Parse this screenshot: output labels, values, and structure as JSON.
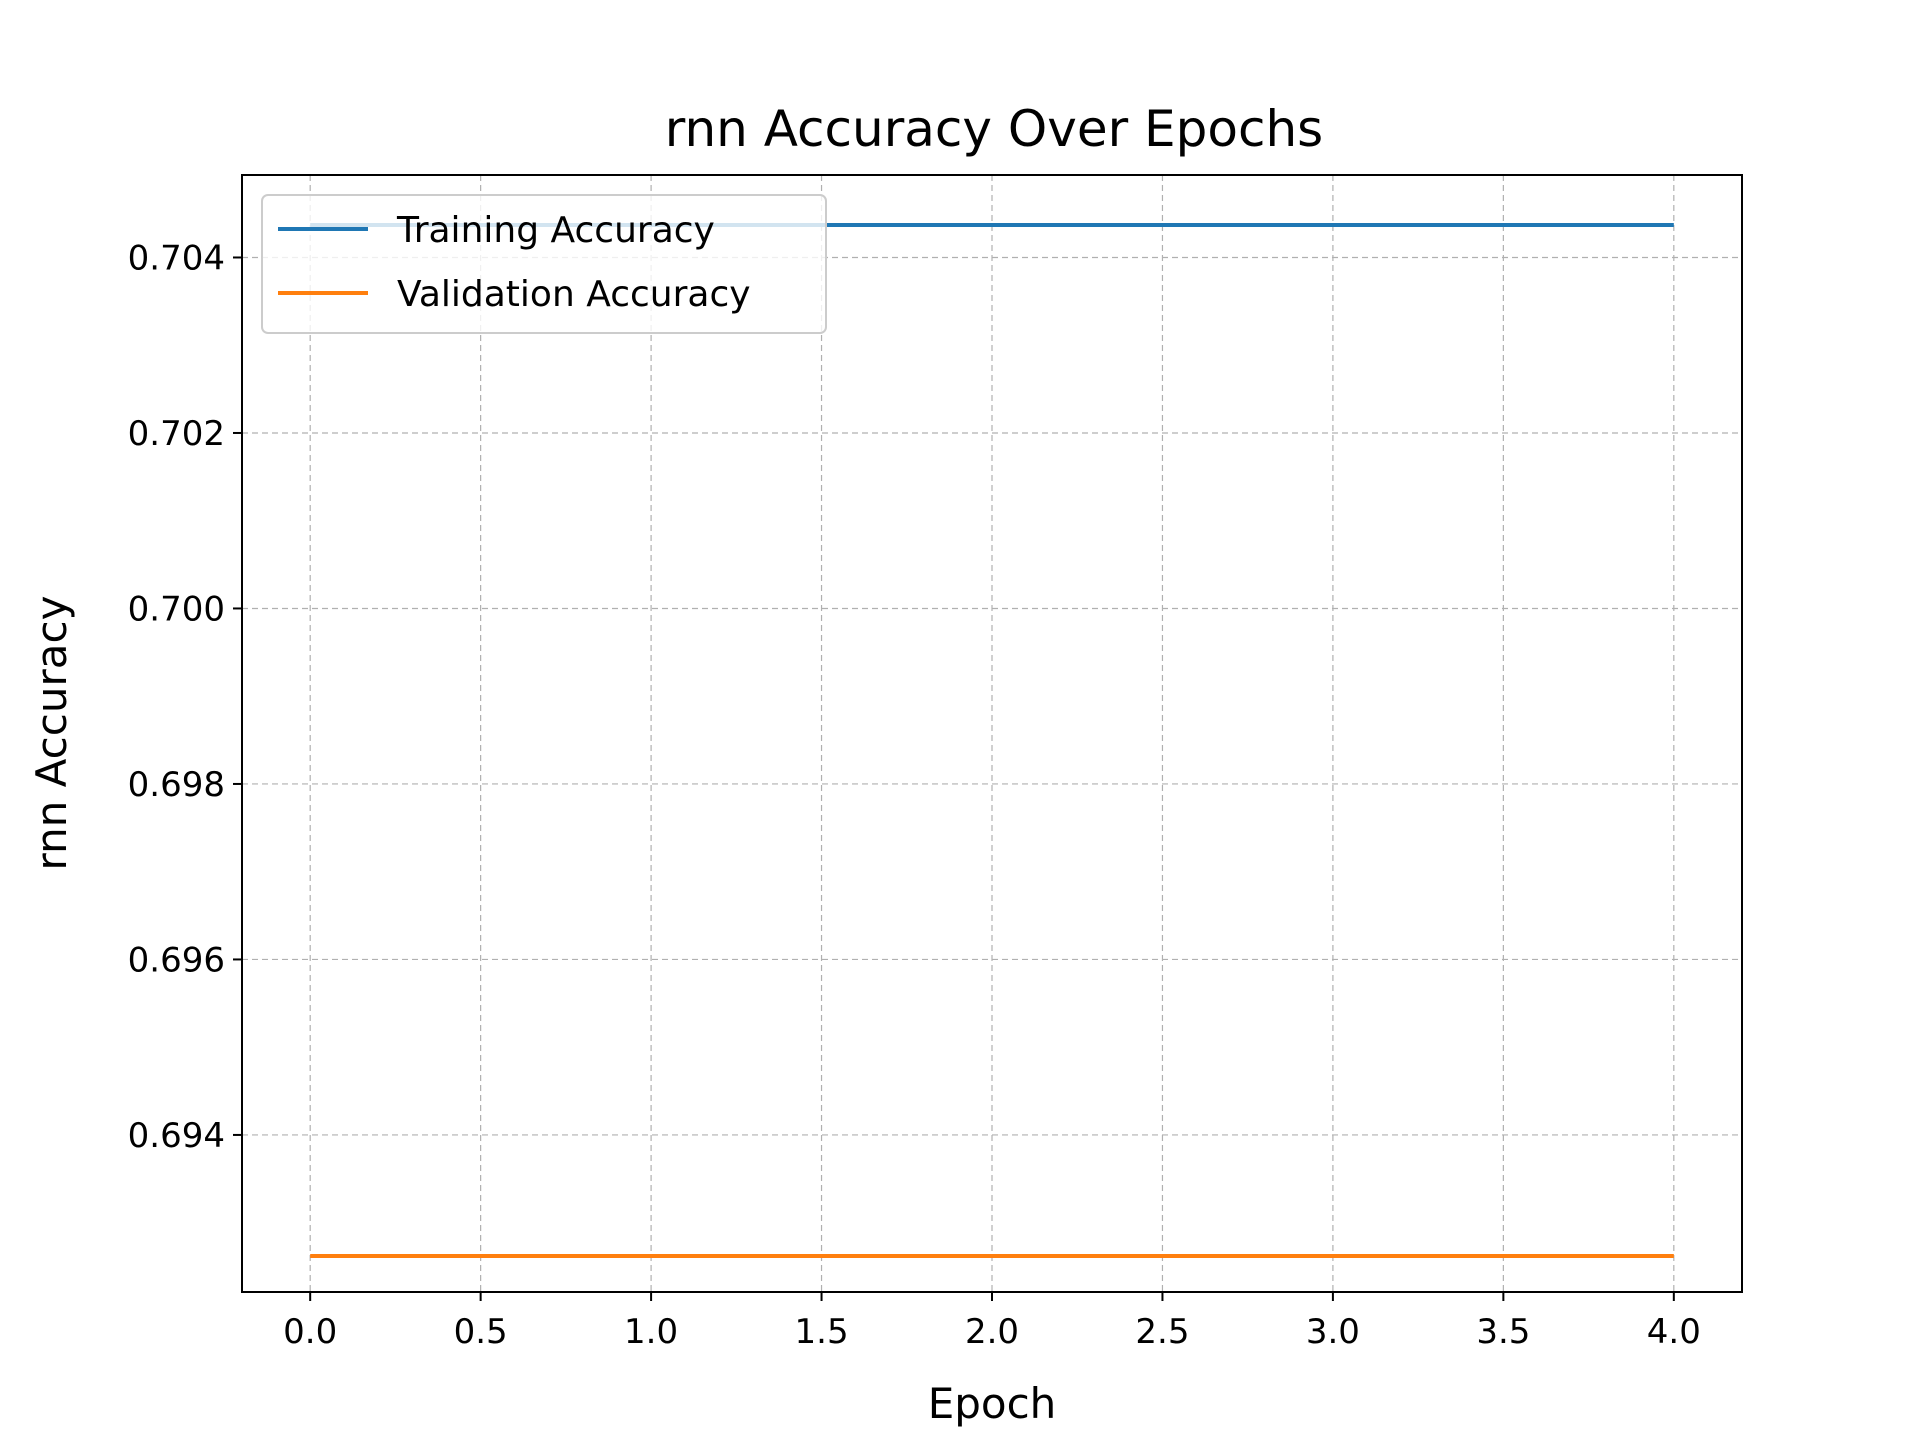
{
  "chart_data": {
    "type": "line",
    "title": "rnn Accuracy Over Epochs",
    "xlabel": "Epoch",
    "ylabel": "rnn Accuracy",
    "x": [
      0,
      1,
      2,
      3,
      4
    ],
    "xlim": [
      -0.2,
      4.2
    ],
    "ylim": [
      0.69221,
      0.70494
    ],
    "xticks": [
      0.0,
      0.5,
      1.0,
      1.5,
      2.0,
      2.5,
      3.0,
      3.5,
      4.0
    ],
    "xtick_labels": [
      "0.0",
      "0.5",
      "1.0",
      "1.5",
      "2.0",
      "2.5",
      "3.0",
      "3.5",
      "4.0"
    ],
    "yticks": [
      0.694,
      0.696,
      0.698,
      0.7,
      0.702,
      0.704
    ],
    "ytick_labels": [
      "0.694",
      "0.696",
      "0.698",
      "0.700",
      "0.702",
      "0.704"
    ],
    "grid": true,
    "legend_position": "upper-left",
    "series": [
      {
        "name": "Training Accuracy",
        "color": "#1f77b4",
        "values": [
          0.70437,
          0.70437,
          0.70437,
          0.70437,
          0.70437
        ]
      },
      {
        "name": "Validation Accuracy",
        "color": "#ff7f0e",
        "values": [
          0.69262,
          0.69262,
          0.69262,
          0.69262,
          0.69262
        ]
      }
    ]
  }
}
